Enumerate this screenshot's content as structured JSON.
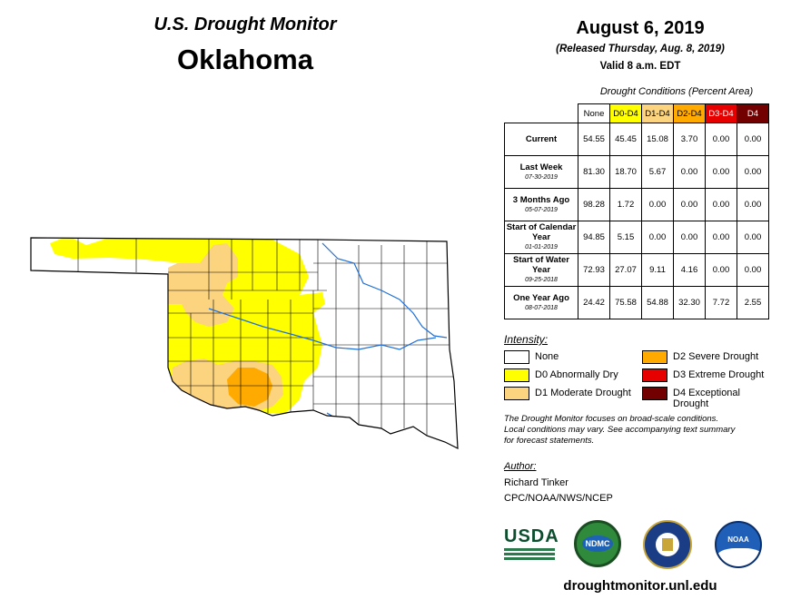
{
  "header": {
    "monitor_title": "U.S. Drought Monitor",
    "state": "Oklahoma",
    "date": "August 6, 2019",
    "released": "(Released Thursday, Aug. 8, 2019)",
    "valid": "Valid 8 a.m. EDT"
  },
  "conditions": {
    "caption": "Drought Conditions (Percent Area)",
    "columns": [
      "None",
      "D0-D4",
      "D1-D4",
      "D2-D4",
      "D3-D4",
      "D4"
    ],
    "column_colors": [
      "#ffffff",
      "#ffff00",
      "#fcd37f",
      "#ffaa00",
      "#e60000",
      "#730000"
    ],
    "rows": [
      {
        "label": "Current",
        "date": "",
        "values": [
          "54.55",
          "45.45",
          "15.08",
          "3.70",
          "0.00",
          "0.00"
        ]
      },
      {
        "label": "Last Week",
        "date": "07-30-2019",
        "values": [
          "81.30",
          "18.70",
          "5.67",
          "0.00",
          "0.00",
          "0.00"
        ]
      },
      {
        "label": "3 Months Ago",
        "date": "05-07-2019",
        "values": [
          "98.28",
          "1.72",
          "0.00",
          "0.00",
          "0.00",
          "0.00"
        ]
      },
      {
        "label": "Start of Calendar Year",
        "date": "01-01-2019",
        "values": [
          "94.85",
          "5.15",
          "0.00",
          "0.00",
          "0.00",
          "0.00"
        ]
      },
      {
        "label": "Start of Water Year",
        "date": "09-25-2018",
        "values": [
          "72.93",
          "27.07",
          "9.11",
          "4.16",
          "0.00",
          "0.00"
        ]
      },
      {
        "label": "One Year Ago",
        "date": "08-07-2018",
        "values": [
          "24.42",
          "75.58",
          "54.88",
          "32.30",
          "7.72",
          "2.55"
        ]
      }
    ]
  },
  "legend": {
    "title": "Intensity:",
    "items": [
      {
        "label": "None",
        "color": "#ffffff"
      },
      {
        "label": "D0 Abnormally Dry",
        "color": "#ffff00"
      },
      {
        "label": "D1 Moderate Drought",
        "color": "#fcd37f"
      },
      {
        "label": "D2 Severe Drought",
        "color": "#ffaa00"
      },
      {
        "label": "D3 Extreme Drought",
        "color": "#e60000"
      },
      {
        "label": "D4 Exceptional Drought",
        "color": "#730000"
      }
    ]
  },
  "note": {
    "line1": "The Drought Monitor focuses on broad-scale conditions.",
    "line2": "Local conditions may vary. See accompanying text summary",
    "line3": "for forecast statements."
  },
  "author": {
    "heading": "Author:",
    "name": "Richard Tinker",
    "org": "CPC/NOAA/NWS/NCEP"
  },
  "logos": {
    "usda": "USDA",
    "ndmc": "NDMC",
    "noaa": "NOAA"
  },
  "map": {
    "river_color": "#1f6fd6",
    "border_color": "#000000"
  },
  "site": "droughtmonitor.unl.edu"
}
